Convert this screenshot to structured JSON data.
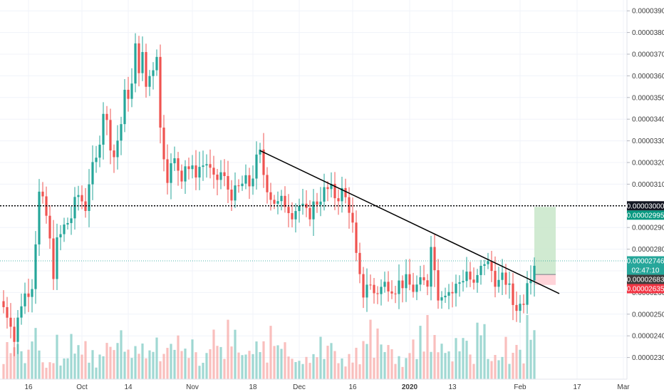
{
  "chart_data": {
    "type": "candlestick",
    "title": "",
    "xlabel": "",
    "ylabel": "",
    "grid": true,
    "y_ticks": [
      "0.00002300",
      "0.00002400",
      "0.00002500",
      "0.00002600",
      "0.00002700",
      "0.00002800",
      "0.00002900",
      "0.00003000",
      "0.00003100",
      "0.00003200",
      "0.00003300",
      "0.00003400",
      "0.00003500",
      "0.00003600",
      "0.00003700",
      "0.00003800",
      "0.00003900"
    ],
    "ylim": [
      2.2e-05,
      3.95e-05
    ],
    "x_start": "2019-09-08",
    "x_end": "2020-03-02",
    "x_ticks": [
      {
        "label": "16",
        "date": "2019-09-16",
        "bold": false
      },
      {
        "label": "Oct",
        "date": "2019-10-01",
        "bold": false
      },
      {
        "label": "14",
        "date": "2019-10-14",
        "bold": false
      },
      {
        "label": "Nov",
        "date": "2019-11-01",
        "bold": false
      },
      {
        "label": "18",
        "date": "2019-11-18",
        "bold": false
      },
      {
        "label": "Dec",
        "date": "2019-12-01",
        "bold": false
      },
      {
        "label": "16",
        "date": "2019-12-16",
        "bold": false
      },
      {
        "label": "2020",
        "date": "2020-01-01",
        "bold": true
      },
      {
        "label": "13",
        "date": "2020-01-13",
        "bold": false
      },
      {
        "label": "Feb",
        "date": "2020-02-01",
        "bold": false
      },
      {
        "label": "17",
        "date": "2020-02-17",
        "bold": false
      },
      {
        "label": "Mar",
        "date": "2020-03-01",
        "bold": false
      }
    ],
    "price_path": [
      [
        "2019-09-08",
        2.56e-05
      ],
      [
        "2019-09-11",
        2.48e-05
      ],
      [
        "2019-09-12",
        2.38e-05
      ],
      [
        "2019-09-14",
        2.56e-05
      ],
      [
        "2019-09-16",
        2.62e-05
      ],
      [
        "2019-09-17",
        2.65e-05
      ],
      [
        "2019-09-19",
        3.05e-05
      ],
      [
        "2019-09-21",
        2.95e-05
      ],
      [
        "2019-09-23",
        2.7e-05
      ],
      [
        "2019-09-24",
        2.82e-05
      ],
      [
        "2019-09-26",
        2.9e-05
      ],
      [
        "2019-09-28",
        2.95e-05
      ],
      [
        "2019-09-30",
        3.05e-05
      ],
      [
        "2019-10-02",
        3e-05
      ],
      [
        "2019-10-03",
        3.12e-05
      ],
      [
        "2019-10-05",
        3.2e-05
      ],
      [
        "2019-10-07",
        3.45e-05
      ],
      [
        "2019-10-09",
        3.3e-05
      ],
      [
        "2019-10-10",
        3.23e-05
      ],
      [
        "2019-10-12",
        3.38e-05
      ],
      [
        "2019-10-13",
        3.5e-05
      ],
      [
        "2019-10-15",
        3.55e-05
      ],
      [
        "2019-10-16",
        3.72e-05
      ],
      [
        "2019-10-17",
        3.65e-05
      ],
      [
        "2019-10-18",
        3.68e-05
      ],
      [
        "2019-10-19",
        3.55e-05
      ],
      [
        "2019-10-21",
        3.65e-05
      ],
      [
        "2019-10-22",
        3.72e-05
      ],
      [
        "2019-10-23",
        3.35e-05
      ],
      [
        "2019-10-25",
        3.15e-05
      ],
      [
        "2019-10-27",
        3.2e-05
      ],
      [
        "2019-10-29",
        3.15e-05
      ],
      [
        "2019-10-30",
        3.2e-05
      ],
      [
        "2019-11-01",
        3.15e-05
      ],
      [
        "2019-11-03",
        3.18e-05
      ],
      [
        "2019-11-05",
        3.2e-05
      ],
      [
        "2019-11-07",
        3.1e-05
      ],
      [
        "2019-11-09",
        3.15e-05
      ],
      [
        "2019-11-11",
        3.08e-05
      ],
      [
        "2019-11-13",
        3.05e-05
      ],
      [
        "2019-11-15",
        3.1e-05
      ],
      [
        "2019-11-17",
        3.1e-05
      ],
      [
        "2019-11-19",
        3.2e-05
      ],
      [
        "2019-11-20",
        3.23e-05
      ],
      [
        "2019-11-21",
        3.15e-05
      ],
      [
        "2019-11-23",
        3.05e-05
      ],
      [
        "2019-11-25",
        3e-05
      ],
      [
        "2019-11-27",
        3.02e-05
      ],
      [
        "2019-11-29",
        2.98e-05
      ],
      [
        "2019-12-01",
        3e-05
      ],
      [
        "2019-12-03",
        2.95e-05
      ],
      [
        "2019-12-05",
        3e-05
      ],
      [
        "2019-12-07",
        3.05e-05
      ],
      [
        "2019-12-09",
        3.07e-05
      ],
      [
        "2019-12-11",
        3.05e-05
      ],
      [
        "2019-12-13",
        3.06e-05
      ],
      [
        "2019-12-15",
        3e-05
      ],
      [
        "2019-12-16",
        2.9e-05
      ],
      [
        "2019-12-17",
        2.75e-05
      ],
      [
        "2019-12-18",
        2.65e-05
      ],
      [
        "2019-12-19",
        2.6e-05
      ],
      [
        "2019-12-20",
        2.65e-05
      ],
      [
        "2019-12-22",
        2.6e-05
      ],
      [
        "2019-12-24",
        2.62e-05
      ],
      [
        "2019-12-26",
        2.65e-05
      ],
      [
        "2019-12-28",
        2.63e-05
      ],
      [
        "2019-12-30",
        2.65e-05
      ],
      [
        "2020-01-02",
        2.62e-05
      ],
      [
        "2020-01-04",
        2.63e-05
      ],
      [
        "2020-01-06",
        2.65e-05
      ],
      [
        "2020-01-07",
        2.85e-05
      ],
      [
        "2020-01-08",
        2.7e-05
      ],
      [
        "2020-01-09",
        2.6e-05
      ],
      [
        "2020-01-11",
        2.62e-05
      ],
      [
        "2020-01-13",
        2.6e-05
      ],
      [
        "2020-01-15",
        2.65e-05
      ],
      [
        "2020-01-17",
        2.7e-05
      ],
      [
        "2020-01-19",
        2.62e-05
      ],
      [
        "2020-01-21",
        2.7e-05
      ],
      [
        "2020-01-22",
        2.75e-05
      ],
      [
        "2020-01-24",
        2.7e-05
      ],
      [
        "2020-01-26",
        2.64e-05
      ],
      [
        "2020-01-28",
        2.66e-05
      ],
      [
        "2020-01-30",
        2.55e-05
      ],
      [
        "2020-02-01",
        2.54e-05
      ],
      [
        "2020-02-02",
        2.58e-05
      ],
      [
        "2020-02-03",
        2.68e-05
      ],
      [
        "2020-02-04",
        2.7e-05
      ],
      [
        "2020-02-05",
        2.746e-05
      ]
    ],
    "volume_ratio": [
      0.1,
      0.16,
      0.12,
      0.18,
      0.14,
      0.22,
      0.12,
      0.26,
      0.16,
      0.2,
      0.13,
      0.15,
      0.1,
      0.12
    ],
    "trendline": [
      [
        "2019-11-20",
        3.255e-05
      ],
      [
        "2020-02-12",
        2.595e-05
      ]
    ],
    "horizontal_level": 3e-05,
    "position": {
      "entry": 2.683e-05,
      "target": 2.995e-05,
      "stop": 2.635e-05,
      "start": "2020-02-05",
      "end": "2020-02-11",
      "profit_color": "#c8e6c9",
      "loss_color": "#ffcdd2"
    },
    "price_tags": [
      {
        "label": "0.00003000",
        "value": 3e-05,
        "bg": "#131722"
      },
      {
        "label": "0.00002995",
        "value": 2.995e-05,
        "bg": "#089981"
      },
      {
        "label": "0.00002746",
        "value": 2.746e-05,
        "bg": "#26a69a"
      },
      {
        "label": "02:47:10",
        "value": 2.715e-05,
        "bg": "#26a69a"
      },
      {
        "label": "0.00002683",
        "value": 2.683e-05,
        "bg": "#3d3d3d"
      },
      {
        "label": "0.00002635",
        "value": 2.635e-05,
        "bg": "#f23645"
      }
    ],
    "colors": {
      "up": "#26a69a",
      "down": "#ef5350",
      "grid": "#f0f3fa",
      "axis_text": "#3c3c3c",
      "trendline": "#000000",
      "level": "#000000"
    }
  }
}
